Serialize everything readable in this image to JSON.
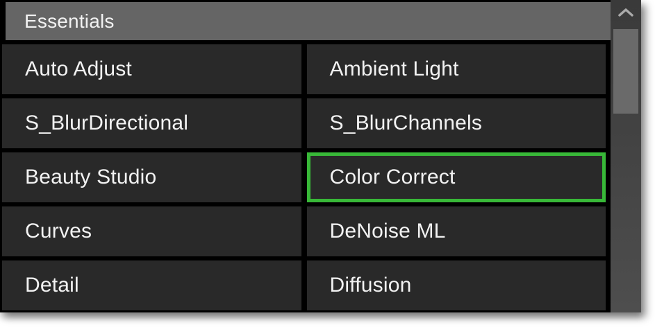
{
  "panel": {
    "title": "Essentials",
    "items": [
      {
        "label": "Auto Adjust",
        "selected": false
      },
      {
        "label": "Ambient Light",
        "selected": false
      },
      {
        "label": "S_BlurDirectional",
        "selected": false
      },
      {
        "label": "S_BlurChannels",
        "selected": false
      },
      {
        "label": "Beauty Studio",
        "selected": false
      },
      {
        "label": "Color Correct",
        "selected": true
      },
      {
        "label": "Curves",
        "selected": false
      },
      {
        "label": "DeNoise ML",
        "selected": false
      },
      {
        "label": "Detail",
        "selected": false
      },
      {
        "label": "Diffusion",
        "selected": false
      }
    ],
    "scrollbar": {
      "up_icon": "chevron-up"
    },
    "colors": {
      "panel_bg": "#000000",
      "header_bg": "#656565",
      "item_bg": "#292929",
      "item_text": "#f2f2f2",
      "selected_border": "#38b838",
      "scroll_track_top": "#3a3a3a",
      "scroll_track_bottom": "#4e4e4e",
      "scroll_thumb": "#6a6a6a",
      "chevron": "#aaaaaa"
    }
  }
}
